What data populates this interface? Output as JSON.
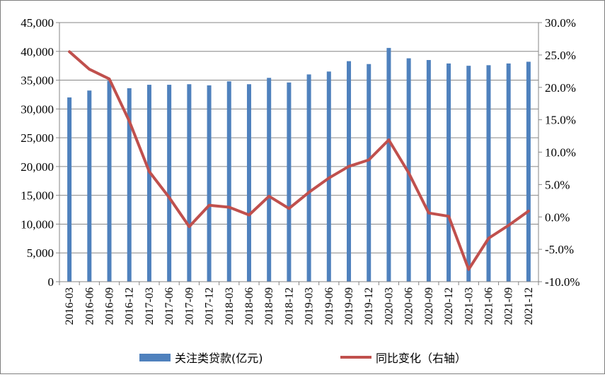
{
  "chart_data": {
    "type": "bar+line",
    "categories": [
      "2016-03",
      "2016-06",
      "2016-09",
      "2016-12",
      "2017-03",
      "2017-06",
      "2017-09",
      "2017-12",
      "2018-03",
      "2018-06",
      "2018-09",
      "2018-12",
      "2019-03",
      "2019-06",
      "2019-09",
      "2019-12",
      "2020-03",
      "2020-06",
      "2020-09",
      "2020-12",
      "2021-03",
      "2021-06",
      "2021-09",
      "2021-12"
    ],
    "series": [
      {
        "name": "关注类贷款(亿元)",
        "type": "bar",
        "axis": "left",
        "color": "#4f81bd",
        "values": [
          32000,
          33200,
          34900,
          33600,
          34200,
          34200,
          34300,
          34100,
          34800,
          34300,
          35400,
          34600,
          36000,
          36500,
          38300,
          37800,
          40600,
          38800,
          38500,
          37900,
          37500,
          37600,
          37900,
          38200
        ]
      },
      {
        "name": "同比变化（右轴）",
        "type": "line",
        "axis": "right",
        "color": "#c0504d",
        "values": [
          25.5,
          22.8,
          21.3,
          14.8,
          7.0,
          3.0,
          -1.5,
          1.8,
          1.5,
          0.3,
          3.2,
          1.3,
          3.8,
          6.0,
          7.8,
          8.8,
          11.9,
          6.8,
          0.6,
          0.1,
          -8.1,
          -3.3,
          -1.3,
          0.9
        ]
      }
    ],
    "y_left": {
      "min": 0,
      "max": 45000,
      "step": 5000,
      "ticks": [
        "0",
        "5,000",
        "10,000",
        "15,000",
        "20,000",
        "25,000",
        "30,000",
        "35,000",
        "40,000",
        "45,000"
      ]
    },
    "y_right": {
      "min": -10,
      "max": 30,
      "step": 5,
      "ticks": [
        "-10.0%",
        "-5.0%",
        "0.0%",
        "5.0%",
        "10.0%",
        "15.0%",
        "20.0%",
        "25.0%",
        "30.0%"
      ]
    },
    "grid": true,
    "legend_position": "bottom"
  }
}
